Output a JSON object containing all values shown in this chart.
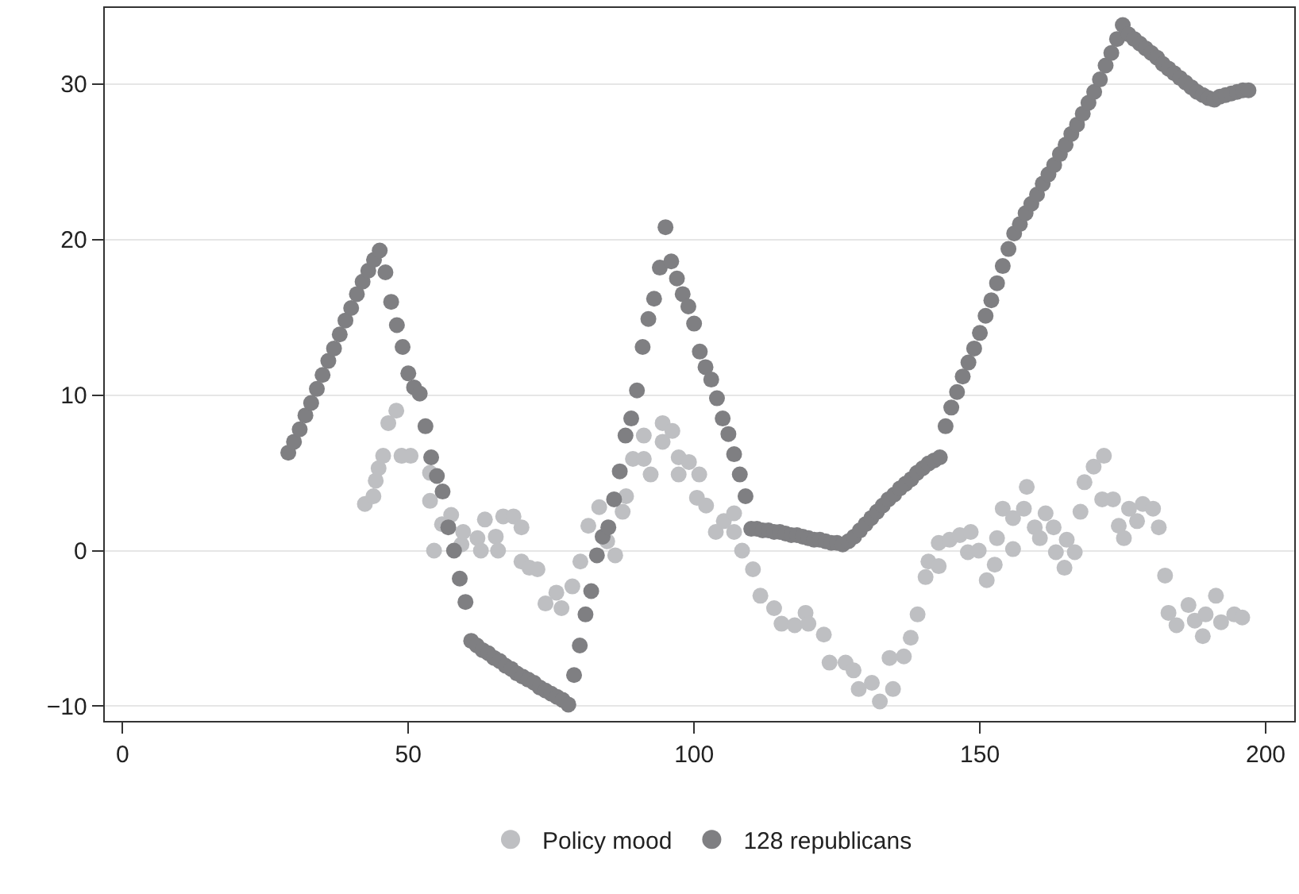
{
  "chart_data": {
    "type": "scatter",
    "marker": "circle",
    "grid": "y",
    "legend": "bottom",
    "xlim": [
      -3.1,
      205
    ],
    "ylim": [
      -10.95,
      34.9
    ],
    "xticks": [
      0,
      50,
      100,
      150,
      200
    ],
    "yticks": [
      {
        "value": -10,
        "label": "−10"
      },
      0,
      10,
      20,
      30
    ],
    "series": [
      {
        "name": "Policy mood",
        "color": "#bebfc2",
        "x": [
          42.4,
          43.9,
          44.3,
          44.8,
          45.6,
          46.5,
          47.9,
          48.8,
          50.4,
          53.8,
          53.8,
          54.5,
          55.9,
          57.5,
          59.3,
          59.6,
          62.1,
          62.7,
          63.4,
          65.3,
          65.7,
          66.6,
          68.4,
          69.8,
          69.8,
          71.2,
          72.6,
          74.0,
          75.9,
          76.8,
          78.7,
          80.1,
          81.5,
          83.4,
          84.8,
          86.2,
          87.5,
          88.1,
          89.3,
          91.2,
          91.2,
          92.4,
          94.5,
          94.5,
          96.2,
          97.3,
          97.3,
          99.1,
          100.5,
          100.9,
          102.1,
          103.8,
          105.2,
          107.0,
          107.0,
          108.4,
          110.3,
          111.6,
          114.0,
          115.3,
          117.6,
          119.5,
          120.0,
          122.7,
          123.7,
          126.5,
          127.9,
          128.8,
          131.1,
          132.5,
          134.2,
          134.8,
          136.7,
          137.9,
          139.1,
          140.5,
          141.0,
          142.8,
          142.8,
          144.7,
          146.5,
          147.9,
          148.4,
          149.8,
          151.2,
          152.6,
          153.0,
          154.0,
          155.8,
          155.8,
          157.7,
          158.2,
          159.6,
          160.5,
          161.5,
          162.9,
          163.3,
          164.8,
          165.2,
          166.6,
          167.6,
          168.3,
          169.9,
          171.4,
          171.7,
          173.3,
          174.3,
          175.2,
          176.1,
          177.5,
          178.5,
          180.3,
          181.3,
          182.4,
          183.0,
          184.4,
          186.5,
          187.6,
          189.0,
          189.5,
          191.3,
          192.2,
          194.5,
          195.9
        ],
        "values": [
          3.0,
          3.5,
          4.5,
          5.3,
          6.1,
          8.2,
          9.0,
          6.1,
          6.1,
          5.0,
          3.2,
          0.0,
          1.7,
          2.3,
          0.4,
          1.2,
          0.8,
          0.0,
          2.0,
          0.9,
          0.0,
          2.2,
          2.2,
          1.5,
          -0.7,
          -1.1,
          -1.2,
          -3.4,
          -2.7,
          -3.7,
          -2.3,
          -0.7,
          1.6,
          2.8,
          0.6,
          -0.3,
          2.5,
          3.5,
          5.9,
          5.9,
          7.4,
          4.9,
          7.0,
          8.2,
          7.7,
          6.0,
          4.9,
          5.7,
          3.4,
          4.9,
          2.9,
          1.2,
          1.9,
          2.4,
          1.2,
          0.0,
          -1.2,
          -2.9,
          -3.7,
          -4.7,
          -4.8,
          -4.0,
          -4.7,
          -5.4,
          -7.2,
          -7.2,
          -7.7,
          -8.9,
          -8.5,
          -9.7,
          -6.9,
          -8.9,
          -6.8,
          -5.6,
          -4.1,
          -1.7,
          -0.7,
          -1.0,
          0.5,
          0.7,
          1.0,
          -0.1,
          1.2,
          0.0,
          -1.9,
          -0.9,
          0.8,
          2.7,
          0.1,
          2.1,
          2.7,
          4.1,
          1.5,
          0.8,
          2.4,
          1.5,
          -0.1,
          -1.1,
          0.7,
          -0.1,
          2.5,
          4.4,
          5.4,
          3.3,
          6.1,
          3.3,
          1.6,
          0.8,
          2.7,
          1.9,
          3.0,
          2.7,
          1.5,
          -1.6,
          -4.0,
          -4.8,
          -3.5,
          -4.5,
          -5.5,
          -4.1,
          -2.9,
          -4.6,
          -4.1,
          -4.3
        ]
      },
      {
        "name": "128 republicans",
        "color": "#7f7f82",
        "x": [
          29,
          30,
          31,
          32,
          33,
          34,
          35,
          36,
          37,
          38,
          39,
          40,
          41,
          42,
          43,
          44,
          45,
          46,
          47,
          48,
          49,
          50,
          51,
          52,
          53,
          54,
          55,
          56,
          57,
          58,
          59,
          60,
          61,
          62,
          63,
          64,
          65,
          66,
          67,
          68,
          69,
          70,
          71,
          72,
          73,
          74,
          75,
          76,
          77,
          78,
          79,
          80,
          81,
          82,
          83,
          84,
          85,
          86,
          87,
          88,
          89,
          90,
          91,
          92,
          93,
          94,
          95,
          96,
          97,
          98,
          99,
          100,
          101,
          102,
          103,
          104,
          105,
          106,
          107,
          108,
          109,
          110,
          111,
          112,
          113,
          114,
          115,
          116,
          117,
          118,
          119,
          120,
          121,
          122,
          123,
          124,
          125,
          126,
          127,
          128,
          129,
          130,
          131,
          132,
          133,
          134,
          135,
          136,
          137,
          138,
          139,
          140,
          141,
          142,
          143,
          144,
          145,
          146,
          147,
          148,
          149,
          150,
          151,
          152,
          153,
          154,
          155,
          156,
          157,
          158,
          159,
          160,
          161,
          162,
          163,
          164,
          165,
          166,
          167,
          168,
          169,
          170,
          171,
          172,
          173,
          174,
          175,
          176,
          177,
          178,
          179,
          180,
          181,
          182,
          183,
          184,
          185,
          186,
          187,
          188,
          189,
          190,
          191,
          192,
          193,
          194,
          195,
          196,
          197
        ],
        "values": [
          6.3,
          7.0,
          7.8,
          8.7,
          9.5,
          10.4,
          11.3,
          12.2,
          13.0,
          13.9,
          14.8,
          15.6,
          16.5,
          17.3,
          18.0,
          18.7,
          19.3,
          17.9,
          16.0,
          14.5,
          13.1,
          11.4,
          10.5,
          10.1,
          8.0,
          6.0,
          4.8,
          3.8,
          1.5,
          0.0,
          -1.8,
          -3.3,
          -5.8,
          -6.1,
          -6.4,
          -6.6,
          -6.9,
          -7.1,
          -7.4,
          -7.6,
          -7.9,
          -8.1,
          -8.3,
          -8.5,
          -8.8,
          -9.0,
          -9.2,
          -9.4,
          -9.6,
          -9.9,
          -8.0,
          -6.1,
          -4.1,
          -2.6,
          -0.3,
          0.9,
          1.5,
          3.3,
          5.1,
          7.4,
          8.5,
          10.3,
          13.1,
          14.9,
          16.2,
          18.2,
          20.8,
          18.6,
          17.5,
          16.5,
          15.7,
          14.6,
          12.8,
          11.8,
          11.0,
          9.8,
          8.5,
          7.5,
          6.2,
          4.9,
          3.5,
          1.4,
          1.4,
          1.3,
          1.3,
          1.2,
          1.2,
          1.1,
          1.0,
          1.0,
          0.9,
          0.8,
          0.7,
          0.7,
          0.6,
          0.5,
          0.5,
          0.4,
          0.6,
          0.9,
          1.3,
          1.7,
          2.1,
          2.5,
          2.9,
          3.3,
          3.6,
          4.0,
          4.3,
          4.6,
          5.0,
          5.3,
          5.6,
          5.8,
          6.0,
          8.0,
          9.2,
          10.2,
          11.2,
          12.1,
          13.0,
          14.0,
          15.1,
          16.1,
          17.2,
          18.3,
          19.4,
          20.4,
          21.0,
          21.7,
          22.3,
          22.9,
          23.6,
          24.2,
          24.8,
          25.5,
          26.1,
          26.8,
          27.4,
          28.1,
          28.8,
          29.5,
          30.3,
          31.2,
          32.0,
          32.9,
          33.8,
          33.2,
          32.9,
          32.6,
          32.3,
          32.0,
          31.7,
          31.3,
          31.0,
          30.7,
          30.4,
          30.1,
          29.8,
          29.5,
          29.3,
          29.1,
          29.0,
          29.2,
          29.3,
          29.4,
          29.5,
          29.6,
          29.6
        ]
      }
    ]
  }
}
